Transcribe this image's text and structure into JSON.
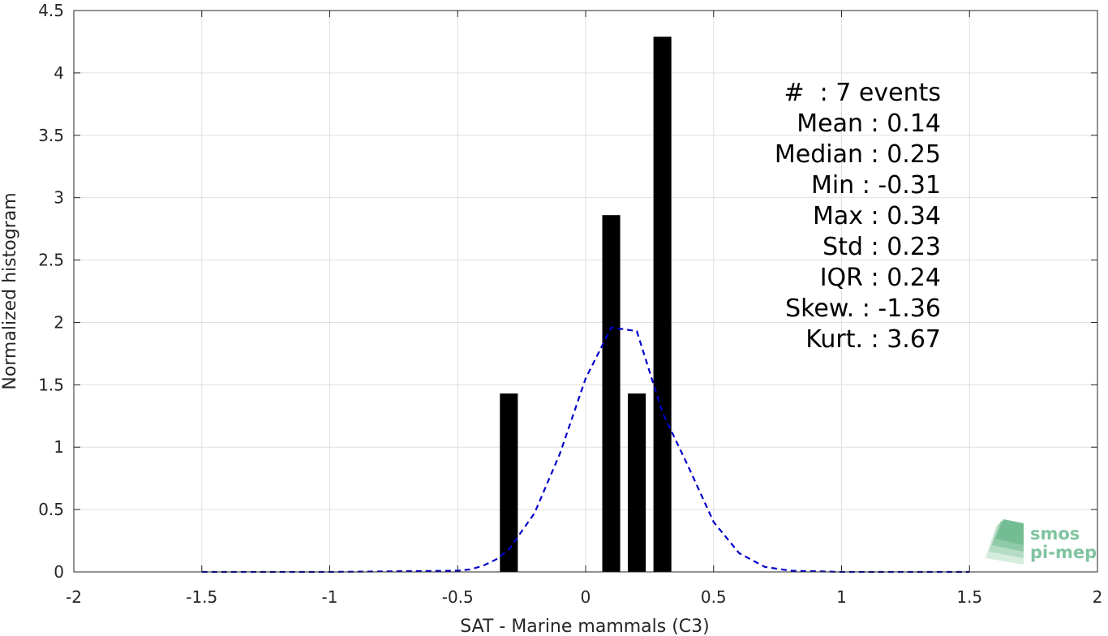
{
  "chart_data": {
    "type": "bar",
    "xlabel": "SAT - Marine mammals (C3)",
    "ylabel": "Normalized histogram",
    "xlim": [
      -2,
      2
    ],
    "ylim": [
      0,
      4.5
    ],
    "xticks": [
      -2,
      -1.5,
      -1,
      -0.5,
      0,
      0.5,
      1,
      1.5,
      2
    ],
    "xtick_labels": [
      "-2",
      "-1.5",
      "-1",
      "-0.5",
      "0",
      "0.5",
      "1",
      "1.5",
      "2"
    ],
    "yticks": [
      0,
      0.5,
      1,
      1.5,
      2,
      2.5,
      3,
      3.5,
      4,
      4.5
    ],
    "ytick_labels": [
      "0",
      "0.5",
      "1",
      "1.5",
      "2",
      "2.5",
      "3",
      "3.5",
      "4",
      "4.5"
    ],
    "grid": true,
    "bar_width": 0.07,
    "bars": [
      {
        "x": -0.3,
        "value": 1.43
      },
      {
        "x": 0.1,
        "value": 2.86
      },
      {
        "x": 0.2,
        "value": 1.43
      },
      {
        "x": 0.3,
        "value": 4.29
      }
    ],
    "bar_color": "#000000",
    "fit_curve": {
      "style": "dashed",
      "color": "#0000cc",
      "x": [
        -1.5,
        -1.0,
        -0.5,
        -0.45,
        -0.4,
        -0.35,
        -0.3,
        -0.2,
        -0.1,
        0.0,
        0.1,
        0.2,
        0.3,
        0.4,
        0.5,
        0.6,
        0.7,
        0.8,
        1.0,
        1.5
      ],
      "y": [
        0.0,
        0.0,
        0.01,
        0.02,
        0.05,
        0.1,
        0.18,
        0.47,
        0.95,
        1.55,
        1.96,
        1.93,
        1.28,
        0.85,
        0.4,
        0.15,
        0.04,
        0.01,
        0.0,
        0.0
      ]
    },
    "stats": [
      "#  : 7 events",
      "Mean : 0.14",
      "Median : 0.25",
      "Min : -0.31",
      "Max : 0.34",
      "Std : 0.23",
      "IQR : 0.24",
      "Skew. : -1.36",
      "Kurt. : 3.67"
    ]
  },
  "logo": {
    "line1": "smos",
    "line2": "pi-mep",
    "color": "#7fc4a0"
  }
}
